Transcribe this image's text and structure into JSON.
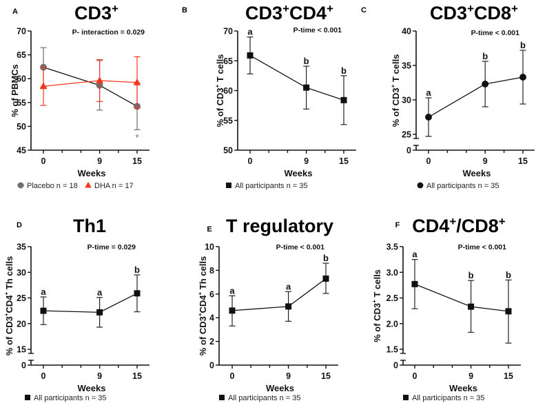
{
  "figure": {
    "colors": {
      "placebo": "#6e6e6e",
      "dha": "#f5361c",
      "all": "#111111",
      "axis": "#111111"
    }
  },
  "chart_data": [
    {
      "id": "A",
      "type": "line",
      "letter": "A",
      "title": "CD3",
      "title_sup": "+",
      "title_rest": [],
      "ylabel": "% of PBMCs",
      "ylabel_parts": [
        [
          "% of PBMCs",
          false
        ]
      ],
      "xlabel": "Weeks",
      "x": [
        0,
        9,
        15
      ],
      "xticks": [
        0,
        9,
        15
      ],
      "xlim": [
        -3,
        18
      ],
      "ylim": [
        45,
        70
      ],
      "yticks": [
        45,
        50,
        55,
        60,
        65,
        70
      ],
      "ytick_labels": [
        "45",
        "50",
        "55",
        "60",
        "65",
        "70"
      ],
      "axis_break": null,
      "annotation": "P- interaction = 0.029",
      "series": [
        {
          "name": "Placebo n = 18",
          "color_key": "placebo",
          "line_color": "#111111",
          "marker": "circle",
          "values": [
            62.4,
            58.6,
            54.2
          ],
          "err_low": [
            58.3,
            53.4,
            49.3
          ],
          "err_high": [
            66.5,
            63.8,
            59.1
          ]
        },
        {
          "name": "DHA n = 17",
          "color_key": "dha",
          "line_color": "#f5361c",
          "marker": "triangle",
          "values": [
            58.4,
            59.6,
            59.2
          ],
          "err_low": [
            54.4,
            55.2,
            53.8
          ],
          "err_high": [
            62.4,
            64.0,
            64.6
          ]
        }
      ],
      "sig_letters": [],
      "extra_marks": [
        {
          "x": 15,
          "y": 47.9,
          "text": "*"
        }
      ],
      "legend": [
        {
          "label": "Placebo n = 18",
          "marker": "circle",
          "color_key": "placebo"
        },
        {
          "label": "DHA n = 17",
          "marker": "triangle",
          "color_key": "dha"
        }
      ]
    },
    {
      "id": "B",
      "type": "line",
      "letter": "B",
      "title": "CD3",
      "title_sup": "+",
      "title_rest": [
        [
          "CD4",
          "+"
        ]
      ],
      "ylabel": "% of CD3+ T cells",
      "ylabel_parts": [
        [
          "% of CD3",
          false
        ],
        [
          "+",
          true
        ],
        [
          " T cells",
          false
        ]
      ],
      "xlabel": "Weeks",
      "x": [
        0,
        9,
        15
      ],
      "xticks": [
        0,
        9,
        15
      ],
      "xlim": [
        -3,
        18
      ],
      "ylim": [
        50,
        70
      ],
      "yticks": [
        50,
        55,
        60,
        65,
        70
      ],
      "ytick_labels": [
        "50",
        "55",
        "60",
        "65",
        "70"
      ],
      "axis_break": null,
      "annotation": "P-time < 0.001",
      "series": [
        {
          "name": "All participants n = 35",
          "color_key": "all",
          "line_color": "#111111",
          "marker": "square",
          "values": [
            65.9,
            60.5,
            58.4
          ],
          "err_low": [
            62.8,
            56.9,
            54.3
          ],
          "err_high": [
            69.0,
            64.1,
            62.5
          ]
        }
      ],
      "sig_letters": [
        "a",
        "b",
        "b"
      ],
      "extra_marks": [],
      "legend": [
        {
          "label": "All participants n = 35",
          "marker": "square",
          "color_key": "all"
        }
      ]
    },
    {
      "id": "C",
      "type": "line",
      "letter": "C",
      "title": "CD3",
      "title_sup": "+",
      "title_rest": [
        [
          "CD8",
          "+"
        ]
      ],
      "ylabel": "% of CD3+ T cells",
      "ylabel_parts": [
        [
          "% of CD3",
          false
        ],
        [
          "+",
          true
        ],
        [
          " T cells",
          false
        ]
      ],
      "xlabel": "Weeks",
      "x": [
        0,
        9,
        15
      ],
      "xticks": [
        0,
        9,
        15
      ],
      "xlim": [
        -3,
        18
      ],
      "ylim": [
        25,
        40
      ],
      "yticks": [
        25,
        30,
        35,
        40
      ],
      "ytick_labels": [
        "25",
        "30",
        "35",
        "40"
      ],
      "axis_break": {
        "low_label": "0"
      },
      "annotation": "P-time < 0.001",
      "series": [
        {
          "name": "All participants n = 35",
          "color_key": "all",
          "line_color": "#111111",
          "marker": "circle",
          "values": [
            27.5,
            32.3,
            33.3
          ],
          "err_low": [
            24.7,
            29.0,
            29.4
          ],
          "err_high": [
            30.3,
            35.6,
            37.2
          ]
        }
      ],
      "sig_letters": [
        "a",
        "b",
        "b"
      ],
      "extra_marks": [],
      "legend": [
        {
          "label": "All participants n = 35",
          "marker": "circle",
          "color_key": "all"
        }
      ]
    },
    {
      "id": "D",
      "type": "line",
      "letter": "D",
      "title": "Th1",
      "title_sup": "",
      "title_rest": [],
      "ylabel": "% of CD3+CD4+ Th cells",
      "ylabel_parts": [
        [
          "% of CD3",
          false
        ],
        [
          "+",
          true
        ],
        [
          "CD4",
          false
        ],
        [
          "+",
          true
        ],
        [
          " Th cells",
          false
        ]
      ],
      "xlabel": "Weeks",
      "x": [
        0,
        9,
        15
      ],
      "xticks": [
        0,
        9,
        15
      ],
      "xlim": [
        -3,
        18
      ],
      "ylim": [
        15,
        35
      ],
      "yticks": [
        15,
        20,
        25,
        30,
        35
      ],
      "ytick_labels": [
        "15",
        "20",
        "25",
        "30",
        "35"
      ],
      "axis_break": {
        "low_label": "0"
      },
      "annotation": "P-time = 0.029",
      "series": [
        {
          "name": "All participants n = 35",
          "color_key": "all",
          "line_color": "#111111",
          "marker": "square",
          "values": [
            22.5,
            22.2,
            25.9
          ],
          "err_low": [
            19.8,
            19.3,
            22.3
          ],
          "err_high": [
            25.2,
            25.1,
            29.5
          ]
        }
      ],
      "sig_letters": [
        "a",
        "a",
        "b"
      ],
      "extra_marks": [],
      "legend": [
        {
          "label": "All participants n = 35",
          "marker": "square",
          "color_key": "all"
        }
      ]
    },
    {
      "id": "E",
      "type": "line",
      "letter": "E",
      "title": "T regulatory",
      "title_sup": "",
      "title_rest": [],
      "ylabel": "% of CD3+CD4+ Th cells",
      "ylabel_parts": [
        [
          "% of CD3",
          false
        ],
        [
          "+",
          true
        ],
        [
          "CD4",
          false
        ],
        [
          "+",
          true
        ],
        [
          " Th cells",
          false
        ]
      ],
      "xlabel": "Weeks",
      "x": [
        0,
        9,
        15
      ],
      "xticks": [
        0,
        9,
        15
      ],
      "xlim": [
        -3,
        18
      ],
      "ylim": [
        0,
        10
      ],
      "yticks": [
        0,
        2,
        4,
        6,
        8,
        10
      ],
      "ytick_labels": [
        "0",
        "2",
        "4",
        "6",
        "8",
        "10"
      ],
      "axis_break": null,
      "annotation": "P-time < 0.001",
      "series": [
        {
          "name": "All participants n = 35",
          "color_key": "all",
          "line_color": "#111111",
          "marker": "square",
          "values": [
            4.6,
            4.95,
            7.3
          ],
          "err_low": [
            3.3,
            3.7,
            6.05
          ],
          "err_high": [
            5.85,
            6.2,
            8.6
          ]
        }
      ],
      "sig_letters": [
        "a",
        "a",
        "b"
      ],
      "extra_marks": [],
      "legend": [
        {
          "label": "All participants n = 35",
          "marker": "square",
          "color_key": "all"
        }
      ]
    },
    {
      "id": "F",
      "type": "line",
      "letter": "F",
      "title": "CD4",
      "title_sup": "+",
      "title_rest": [
        [
          "/CD8",
          "+"
        ]
      ],
      "ylabel": "% of CD3+ T cells",
      "ylabel_parts": [
        [
          "% of CD3",
          false
        ],
        [
          "+",
          true
        ],
        [
          " T cells",
          false
        ]
      ],
      "xlabel": "Weeks",
      "x": [
        0,
        9,
        15
      ],
      "xticks": [
        0,
        9,
        15
      ],
      "xlim": [
        -3,
        18
      ],
      "ylim": [
        1.5,
        3.5
      ],
      "yticks": [
        1.5,
        2.0,
        2.5,
        3.0,
        3.5
      ],
      "ytick_labels": [
        "1.5",
        "2.0",
        "2.5",
        "3.0",
        "3.5"
      ],
      "axis_break": {
        "low_label": "0"
      },
      "annotation": "P-time < 0.001",
      "series": [
        {
          "name": "All participants n = 35",
          "color_key": "all",
          "line_color": "#111111",
          "marker": "square",
          "values": [
            2.77,
            2.33,
            2.24
          ],
          "err_low": [
            2.29,
            1.83,
            1.62
          ],
          "err_high": [
            3.25,
            2.84,
            2.85
          ]
        }
      ],
      "sig_letters": [
        "a",
        "b",
        "b"
      ],
      "extra_marks": [],
      "legend": [
        {
          "label": "All participants n = 35",
          "marker": "square",
          "color_key": "all"
        }
      ]
    }
  ]
}
